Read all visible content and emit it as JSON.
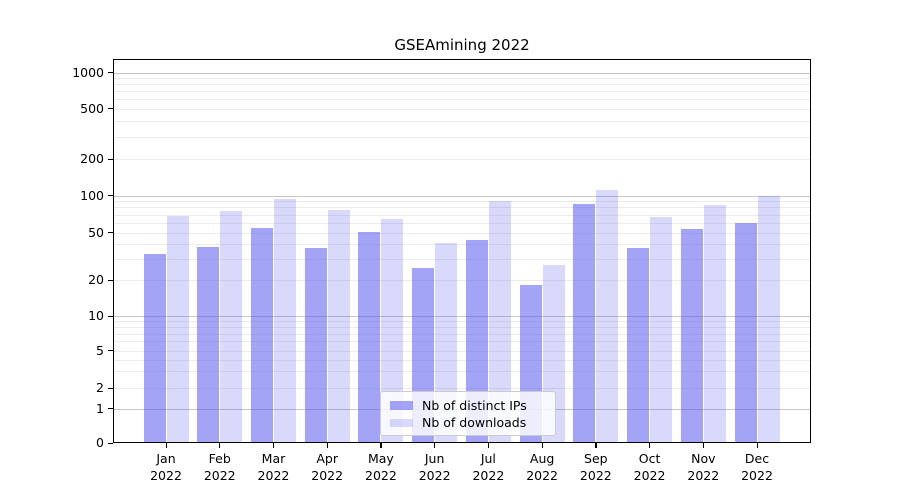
{
  "title": "GSEAmining 2022",
  "chart_data": {
    "type": "bar",
    "title": "GSEAmining 2022",
    "categories": [
      "Jan 2022",
      "Feb 2022",
      "Mar 2022",
      "Apr 2022",
      "May 2022",
      "Jun 2022",
      "Jul 2022",
      "Aug 2022",
      "Sep 2022",
      "Oct 2022",
      "Nov 2022",
      "Dec 2022"
    ],
    "x_tick_months": [
      "Jan",
      "Feb",
      "Mar",
      "Apr",
      "May",
      "Jun",
      "Jul",
      "Aug",
      "Sep",
      "Oct",
      "Nov",
      "Dec"
    ],
    "x_tick_year": "2022",
    "series": [
      {
        "name": "Nb of distinct IPs",
        "values": [
          33,
          38,
          55,
          37,
          51,
          25,
          43,
          18,
          86,
          37,
          54,
          60
        ],
        "color": "#a7a7f8",
        "fill": "rgba(90,90,240,0.55)"
      },
      {
        "name": "Nb of downloads",
        "values": [
          68,
          75,
          94,
          76,
          65,
          41,
          90,
          27,
          111,
          67,
          83,
          100
        ],
        "color": "#d9d9fa",
        "fill": "rgba(90,90,240,0.23)"
      }
    ],
    "xlabel": "",
    "ylabel": "",
    "yscale": "symlog",
    "ylim": [
      0,
      1500
    ],
    "y_ticks": [
      0,
      1,
      2,
      5,
      10,
      20,
      50,
      100,
      200,
      500,
      1000
    ],
    "y_tick_labels": [
      "0",
      "1",
      "2",
      "5",
      "10",
      "20",
      "50",
      "100",
      "200",
      "500",
      "1000"
    ],
    "grid": "horizontal major and log-minor gridlines",
    "legend_position": "lower center"
  },
  "legend": {
    "items": [
      {
        "label": "Nb of distinct IPs",
        "fill": "rgba(90,90,240,0.55)"
      },
      {
        "label": "Nb of downloads",
        "fill": "rgba(90,90,240,0.23)"
      }
    ]
  },
  "colors": {
    "bar_ips": "#a7a7f8",
    "bar_downloads": "#d9d9fa",
    "grid_major": "#c6c6c6",
    "grid_minor": "#ebebeb",
    "spine": "#000000",
    "background": "#ffffff"
  }
}
